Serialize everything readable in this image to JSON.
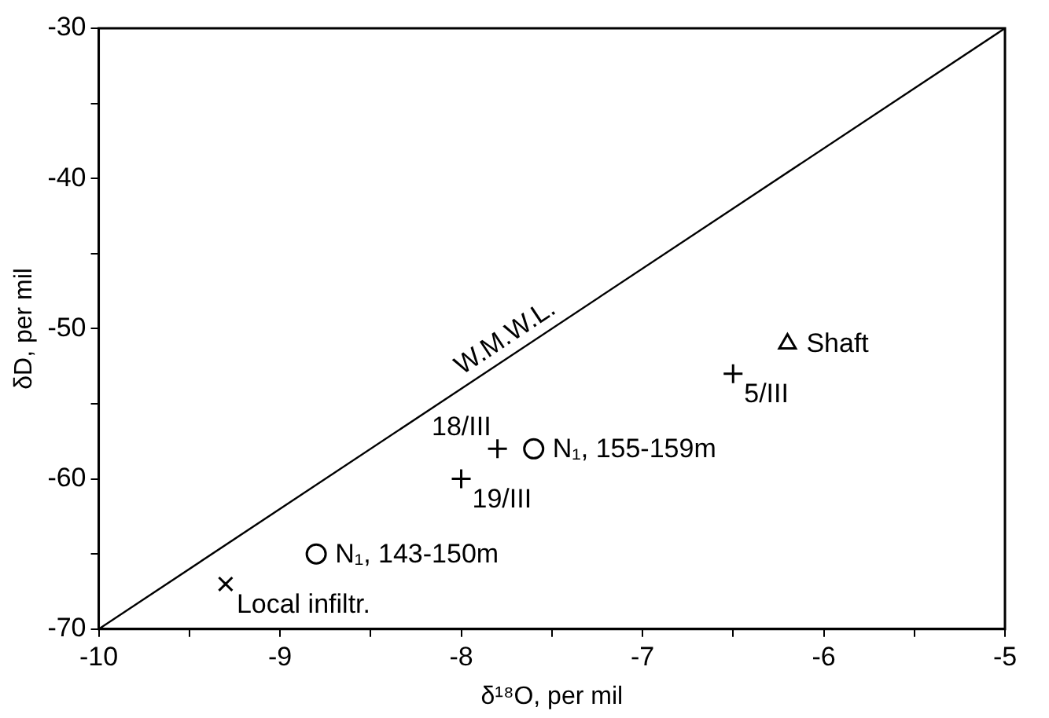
{
  "chart_data": {
    "type": "scatter",
    "xlabel": "δ¹⁸O, per mil",
    "ylabel": "δD, per mil",
    "xlim": [
      -10,
      -5
    ],
    "ylim": [
      -70,
      -30
    ],
    "xticks": [
      -10,
      {
        "value": -9.5,
        "label": null
      },
      -9,
      {
        "value": -8.5,
        "label": null
      },
      -8,
      {
        "value": -7.5,
        "label": null
      },
      -7,
      {
        "value": -6.5,
        "label": null
      },
      -6,
      {
        "value": -5.5,
        "label": null
      },
      -5
    ],
    "yticks": [
      -70,
      {
        "value": -65,
        "label": null
      },
      -60,
      {
        "value": -55,
        "label": null
      },
      -50,
      {
        "value": -45,
        "label": null
      },
      -40,
      {
        "value": -35,
        "label": null
      },
      -30
    ],
    "grid": false,
    "legend": false,
    "series": [
      {
        "type": "line",
        "color": "#000000",
        "marker": "none",
        "x": [
          -10,
          -5
        ],
        "values": [
          -70,
          -30
        ]
      },
      {
        "color": "#000000",
        "marker": "triangle",
        "x": [
          -6.2
        ],
        "values": [
          -51
        ]
      },
      {
        "color": "#000000",
        "marker": "cross",
        "x": [
          -6.5,
          -7.8,
          -8.0
        ],
        "values": [
          -53,
          -58,
          -60
        ]
      },
      {
        "color": "#000000",
        "marker": "circle",
        "x": [
          -7.6,
          -8.8
        ],
        "values": [
          -58,
          -65
        ]
      },
      {
        "color": "#000000",
        "marker": "x",
        "x": [
          -9.3
        ],
        "values": [
          -67
        ]
      }
    ],
    "annotations": [
      {
        "text": "W.M.W.L.",
        "x": -7.7,
        "y": -51.6
      },
      {
        "text": "Shaft",
        "x": -6.2,
        "y": -51
      },
      {
        "text": "5/III",
        "x": -6.5,
        "y": -53
      },
      {
        "text": "18/III",
        "x": -7.8,
        "y": -58
      },
      {
        "text": "N₁, 155-159m",
        "x": -7.6,
        "y": -58
      },
      {
        "text": "19/III",
        "x": -8.0,
        "y": -60
      },
      {
        "text": "N₁, 143-150m",
        "x": -8.8,
        "y": -65
      },
      {
        "text": "Local infiltr.",
        "x": -9.3,
        "y": -67
      }
    ]
  }
}
